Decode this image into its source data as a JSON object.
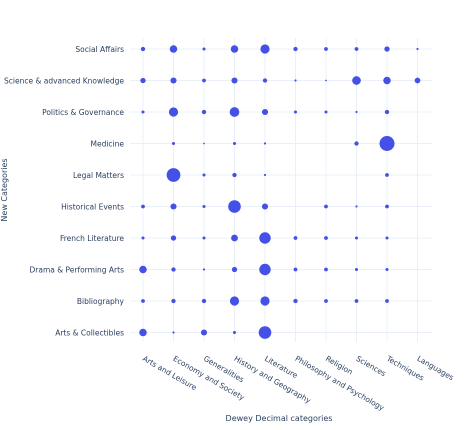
{
  "chart_data": {
    "type": "scatter",
    "title": "",
    "xlabel": "Dewey Decimal categories",
    "ylabel": "New Categories",
    "x_categories": [
      "Arts and Leisure",
      "Economy and Society",
      "Generalities",
      "History and Geography",
      "Literature",
      "Philosophy and Psychology",
      "Religion",
      "Sciences",
      "Techniques",
      "Languages"
    ],
    "y_categories": [
      "Social Affairs",
      "Science & advanced Knowledge",
      "Politics & Governance",
      "Medicine",
      "Legal Matters",
      "Historical Events",
      "French Literature",
      "Drama & Performing Arts",
      "Bibliography",
      "Arts & Collectibles"
    ],
    "marker_color": "#4450e6",
    "grid": true,
    "legend": false,
    "points": [
      {
        "y": "Social Affairs",
        "x": "Arts and Leisure",
        "size": 2
      },
      {
        "y": "Social Affairs",
        "x": "Economy and Society",
        "size": 6
      },
      {
        "y": "Social Affairs",
        "x": "Generalities",
        "size": 1
      },
      {
        "y": "Social Affairs",
        "x": "History and Geography",
        "size": 6
      },
      {
        "y": "Social Affairs",
        "x": "Literature",
        "size": 9
      },
      {
        "y": "Social Affairs",
        "x": "Philosophy and Psychology",
        "size": 2
      },
      {
        "y": "Social Affairs",
        "x": "Religion",
        "size": 1.5
      },
      {
        "y": "Social Affairs",
        "x": "Sciences",
        "size": 1.5
      },
      {
        "y": "Social Affairs",
        "x": "Techniques",
        "size": 3
      },
      {
        "y": "Social Affairs",
        "x": "Languages",
        "size": 0.5
      },
      {
        "y": "Science & advanced Knowledge",
        "x": "Arts and Leisure",
        "size": 3
      },
      {
        "y": "Science & advanced Knowledge",
        "x": "Economy and Society",
        "size": 4
      },
      {
        "y": "Science & advanced Knowledge",
        "x": "Generalities",
        "size": 1.5
      },
      {
        "y": "Science & advanced Knowledge",
        "x": "History and Geography",
        "size": 4
      },
      {
        "y": "Science & advanced Knowledge",
        "x": "Literature",
        "size": 2
      },
      {
        "y": "Science & advanced Knowledge",
        "x": "Philosophy and Psychology",
        "size": 0.5
      },
      {
        "y": "Science & advanced Knowledge",
        "x": "Religion",
        "size": 0.3
      },
      {
        "y": "Science & advanced Knowledge",
        "x": "Sciences",
        "size": 8
      },
      {
        "y": "Science & advanced Knowledge",
        "x": "Techniques",
        "size": 6
      },
      {
        "y": "Science & advanced Knowledge",
        "x": "Languages",
        "size": 3.5
      },
      {
        "y": "Politics & Governance",
        "x": "Arts and Leisure",
        "size": 1
      },
      {
        "y": "Politics & Governance",
        "x": "Economy and Society",
        "size": 9
      },
      {
        "y": "Politics & Governance",
        "x": "Generalities",
        "size": 2
      },
      {
        "y": "Politics & Governance",
        "x": "History and Geography",
        "size": 10
      },
      {
        "y": "Politics & Governance",
        "x": "Literature",
        "size": 4
      },
      {
        "y": "Politics & Governance",
        "x": "Philosophy and Psychology",
        "size": 1
      },
      {
        "y": "Politics & Governance",
        "x": "Religion",
        "size": 1
      },
      {
        "y": "Politics & Governance",
        "x": "Sciences",
        "size": 0.5
      },
      {
        "y": "Politics & Governance",
        "x": "Techniques",
        "size": 2
      },
      {
        "y": "Medicine",
        "x": "Economy and Society",
        "size": 1
      },
      {
        "y": "Medicine",
        "x": "Generalities",
        "size": 0.3
      },
      {
        "y": "Medicine",
        "x": "History and Geography",
        "size": 1
      },
      {
        "y": "Medicine",
        "x": "Literature",
        "size": 0.5
      },
      {
        "y": "Medicine",
        "x": "Sciences",
        "size": 2
      },
      {
        "y": "Medicine",
        "x": "Techniques",
        "size": 24
      },
      {
        "y": "Legal Matters",
        "x": "Economy and Society",
        "size": 20
      },
      {
        "y": "Legal Matters",
        "x": "Generalities",
        "size": 1
      },
      {
        "y": "Legal Matters",
        "x": "History and Geography",
        "size": 2
      },
      {
        "y": "Legal Matters",
        "x": "Literature",
        "size": 0.5
      },
      {
        "y": "Legal Matters",
        "x": "Techniques",
        "size": 1.5
      },
      {
        "y": "Historical Events",
        "x": "Arts and Leisure",
        "size": 1.5
      },
      {
        "y": "Historical Events",
        "x": "Economy and Society",
        "size": 4
      },
      {
        "y": "Historical Events",
        "x": "Generalities",
        "size": 1
      },
      {
        "y": "Historical Events",
        "x": "History and Geography",
        "size": 17
      },
      {
        "y": "Historical Events",
        "x": "Literature",
        "size": 4
      },
      {
        "y": "Historical Events",
        "x": "Religion",
        "size": 1.5
      },
      {
        "y": "Historical Events",
        "x": "Sciences",
        "size": 0.5
      },
      {
        "y": "Historical Events",
        "x": "Techniques",
        "size": 1.5
      },
      {
        "y": "French Literature",
        "x": "Arts and Leisure",
        "size": 1
      },
      {
        "y": "French Literature",
        "x": "Economy and Society",
        "size": 3
      },
      {
        "y": "French Literature",
        "x": "Generalities",
        "size": 1
      },
      {
        "y": "French Literature",
        "x": "History and Geography",
        "size": 5
      },
      {
        "y": "French Literature",
        "x": "Literature",
        "size": 14
      },
      {
        "y": "French Literature",
        "x": "Philosophy and Psychology",
        "size": 1.5
      },
      {
        "y": "French Literature",
        "x": "Religion",
        "size": 1.5
      },
      {
        "y": "French Literature",
        "x": "Sciences",
        "size": 1
      },
      {
        "y": "French Literature",
        "x": "Techniques",
        "size": 1
      },
      {
        "y": "Drama & Performing Arts",
        "x": "Arts and Leisure",
        "size": 6
      },
      {
        "y": "Drama & Performing Arts",
        "x": "Economy and Society",
        "size": 2
      },
      {
        "y": "Drama & Performing Arts",
        "x": "Generalities",
        "size": 0.5
      },
      {
        "y": "Drama & Performing Arts",
        "x": "History and Geography",
        "size": 3
      },
      {
        "y": "Drama & Performing Arts",
        "x": "Literature",
        "size": 14
      },
      {
        "y": "Drama & Performing Arts",
        "x": "Philosophy and Psychology",
        "size": 1.5
      },
      {
        "y": "Drama & Performing Arts",
        "x": "Religion",
        "size": 1.5
      },
      {
        "y": "Drama & Performing Arts",
        "x": "Sciences",
        "size": 1
      },
      {
        "y": "Drama & Performing Arts",
        "x": "Techniques",
        "size": 1
      },
      {
        "y": "Bibliography",
        "x": "Arts and Leisure",
        "size": 1.5
      },
      {
        "y": "Bibliography",
        "x": "Economy and Society",
        "size": 2
      },
      {
        "y": "Bibliography",
        "x": "Generalities",
        "size": 2
      },
      {
        "y": "Bibliography",
        "x": "History and Geography",
        "size": 9
      },
      {
        "y": "Bibliography",
        "x": "Literature",
        "size": 9
      },
      {
        "y": "Bibliography",
        "x": "Philosophy and Psychology",
        "size": 2
      },
      {
        "y": "Bibliography",
        "x": "Religion",
        "size": 1.5
      },
      {
        "y": "Bibliography",
        "x": "Sciences",
        "size": 1.5
      },
      {
        "y": "Bibliography",
        "x": "Techniques",
        "size": 1.5
      },
      {
        "y": "Arts & Collectibles",
        "x": "Arts and Leisure",
        "size": 6
      },
      {
        "y": "Arts & Collectibles",
        "x": "Economy and Society",
        "size": 0.5
      },
      {
        "y": "Arts & Collectibles",
        "x": "Generalities",
        "size": 4
      },
      {
        "y": "Arts & Collectibles",
        "x": "History and Geography",
        "size": 1
      },
      {
        "y": "Arts & Collectibles",
        "x": "Literature",
        "size": 17
      }
    ]
  }
}
